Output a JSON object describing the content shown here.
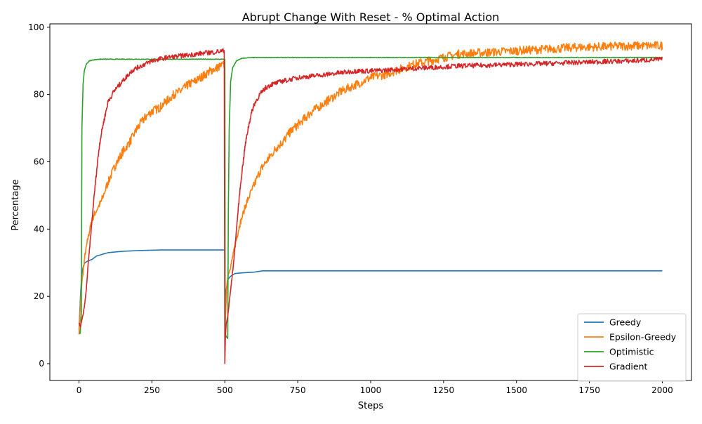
{
  "chart_data": {
    "type": "line",
    "title": "Abrupt Change With Reset - % Optimal Action",
    "xlabel": "Steps",
    "ylabel": "Percentage",
    "xlim": [
      -100,
      2100
    ],
    "ylim": [
      -5,
      101
    ],
    "x_ticks": [
      0,
      250,
      500,
      750,
      1000,
      1250,
      1500,
      1750,
      2000
    ],
    "y_ticks": [
      0,
      20,
      40,
      60,
      80,
      100
    ],
    "grid": false,
    "legend_position": "lower-right",
    "series": [
      {
        "name": "Greedy",
        "color": "#1f77b4",
        "points": [
          [
            0,
            10
          ],
          [
            5,
            20
          ],
          [
            10,
            27
          ],
          [
            15,
            29
          ],
          [
            20,
            30
          ],
          [
            30,
            30.5
          ],
          [
            45,
            31
          ],
          [
            60,
            32
          ],
          [
            80,
            32.5
          ],
          [
            100,
            33
          ],
          [
            150,
            33.4
          ],
          [
            200,
            33.6
          ],
          [
            280,
            33.8
          ],
          [
            400,
            33.8
          ],
          [
            500,
            33.8
          ],
          [
            501,
            11
          ],
          [
            505,
            22
          ],
          [
            510,
            25
          ],
          [
            520,
            26
          ],
          [
            535,
            26.8
          ],
          [
            560,
            27
          ],
          [
            600,
            27.2
          ],
          [
            630,
            27.6
          ],
          [
            800,
            27.6
          ],
          [
            1200,
            27.6
          ],
          [
            2000,
            27.6
          ]
        ]
      },
      {
        "name": "Epsilon-Greedy",
        "color": "#ff7f0e",
        "points": [
          [
            0,
            9
          ],
          [
            5,
            18
          ],
          [
            10,
            24
          ],
          [
            20,
            32
          ],
          [
            30,
            37
          ],
          [
            40,
            41
          ],
          [
            50,
            44
          ],
          [
            75,
            48
          ],
          [
            100,
            54
          ],
          [
            125,
            59
          ],
          [
            150,
            63
          ],
          [
            175,
            66
          ],
          [
            200,
            70
          ],
          [
            225,
            73
          ],
          [
            250,
            75
          ],
          [
            275,
            76
          ],
          [
            300,
            78
          ],
          [
            325,
            80
          ],
          [
            350,
            81
          ],
          [
            375,
            83
          ],
          [
            400,
            84
          ],
          [
            425,
            85.5
          ],
          [
            450,
            87
          ],
          [
            475,
            88
          ],
          [
            500,
            89
          ],
          [
            501,
            11
          ],
          [
            505,
            20
          ],
          [
            510,
            26
          ],
          [
            520,
            29
          ],
          [
            530,
            33
          ],
          [
            540,
            37
          ],
          [
            550,
            41
          ],
          [
            575,
            48
          ],
          [
            600,
            53
          ],
          [
            625,
            58
          ],
          [
            650,
            61
          ],
          [
            675,
            64
          ],
          [
            700,
            66
          ],
          [
            725,
            69
          ],
          [
            750,
            71
          ],
          [
            775,
            73
          ],
          [
            800,
            75
          ],
          [
            850,
            78
          ],
          [
            900,
            81
          ],
          [
            950,
            83
          ],
          [
            1000,
            85
          ],
          [
            1050,
            86
          ],
          [
            1100,
            87.5
          ],
          [
            1150,
            89
          ],
          [
            1200,
            90
          ],
          [
            1250,
            91
          ],
          [
            1300,
            92
          ],
          [
            1400,
            92.5
          ],
          [
            1500,
            93
          ],
          [
            1600,
            93.5
          ],
          [
            1700,
            94
          ],
          [
            1800,
            94.2
          ],
          [
            1900,
            94.5
          ],
          [
            2000,
            94.5
          ]
        ]
      },
      {
        "name": "Optimistic",
        "color": "#2ca02c",
        "points": [
          [
            0,
            9
          ],
          [
            4,
            9
          ],
          [
            8,
            15
          ],
          [
            10,
            70
          ],
          [
            14,
            83
          ],
          [
            18,
            87
          ],
          [
            25,
            89
          ],
          [
            35,
            90
          ],
          [
            50,
            90.3
          ],
          [
            70,
            90.5
          ],
          [
            150,
            90.5
          ],
          [
            300,
            90.5
          ],
          [
            500,
            90.5
          ],
          [
            501,
            9
          ],
          [
            505,
            8
          ],
          [
            510,
            7.5
          ],
          [
            512,
            45
          ],
          [
            515,
            70
          ],
          [
            520,
            84
          ],
          [
            527,
            88
          ],
          [
            540,
            90
          ],
          [
            560,
            90.8
          ],
          [
            600,
            91
          ],
          [
            1000,
            91
          ],
          [
            1500,
            91
          ],
          [
            2000,
            91
          ]
        ]
      },
      {
        "name": "Gradient",
        "color": "#d62728",
        "points": [
          [
            0,
            12
          ],
          [
            5,
            11
          ],
          [
            10,
            13
          ],
          [
            15,
            15
          ],
          [
            20,
            18
          ],
          [
            25,
            22
          ],
          [
            30,
            28
          ],
          [
            40,
            38
          ],
          [
            50,
            48
          ],
          [
            60,
            57
          ],
          [
            70,
            65
          ],
          [
            80,
            70
          ],
          [
            90,
            74
          ],
          [
            100,
            78
          ],
          [
            120,
            81
          ],
          [
            140,
            83
          ],
          [
            160,
            85
          ],
          [
            180,
            87
          ],
          [
            200,
            88
          ],
          [
            225,
            89
          ],
          [
            250,
            90
          ],
          [
            275,
            90.5
          ],
          [
            300,
            91
          ],
          [
            350,
            91.5
          ],
          [
            400,
            92
          ],
          [
            450,
            92.5
          ],
          [
            498,
            93
          ],
          [
            500,
            0
          ],
          [
            502,
            8
          ],
          [
            505,
            12
          ],
          [
            510,
            14
          ],
          [
            515,
            18
          ],
          [
            520,
            22
          ],
          [
            530,
            30
          ],
          [
            540,
            40
          ],
          [
            550,
            50
          ],
          [
            560,
            58
          ],
          [
            570,
            65
          ],
          [
            580,
            70
          ],
          [
            590,
            74
          ],
          [
            600,
            77
          ],
          [
            620,
            80
          ],
          [
            640,
            82
          ],
          [
            660,
            83
          ],
          [
            700,
            84
          ],
          [
            750,
            85
          ],
          [
            800,
            85.5
          ],
          [
            850,
            86
          ],
          [
            900,
            86.5
          ],
          [
            950,
            87
          ],
          [
            1000,
            87
          ],
          [
            1100,
            87.5
          ],
          [
            1200,
            88
          ],
          [
            1300,
            88.5
          ],
          [
            1400,
            88.7
          ],
          [
            1500,
            89
          ],
          [
            1600,
            89.2
          ],
          [
            1700,
            89.5
          ],
          [
            1800,
            89.8
          ],
          [
            1900,
            90
          ],
          [
            2000,
            90.5
          ]
        ]
      }
    ]
  }
}
